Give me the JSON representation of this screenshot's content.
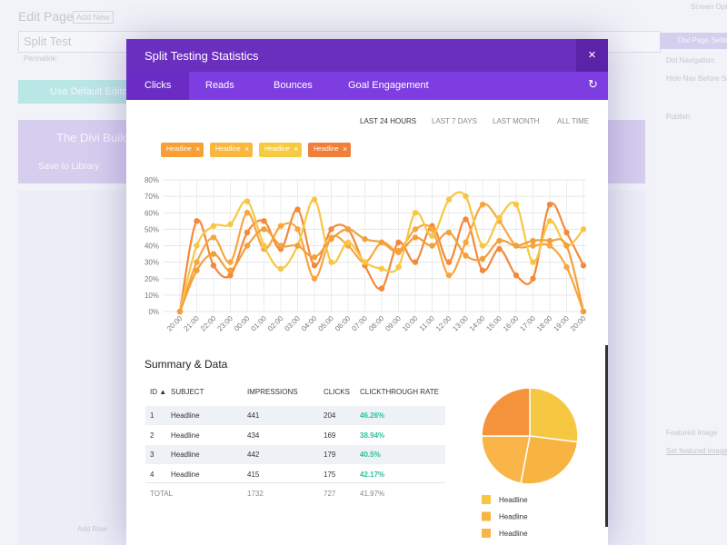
{
  "background": {
    "page_title": "Edit Page",
    "add_new": "Add New",
    "post_title": "Split Test",
    "permalink": "Permalink:",
    "default_editor": "Use Default Editor",
    "builder": "The Divi Builder",
    "save_library": "Save to Library",
    "screen_options": "Screen Options",
    "settings_title": "Divi Page Settings",
    "dot_nav": "Dot Navigation:",
    "hide_nav": "Hide Nav Before Scroll:",
    "publish": "Publish",
    "featured_image": "Featured Image",
    "set_featured": "Set featured image",
    "add_row": "Add Row"
  },
  "modal": {
    "title": "Split Testing Statistics",
    "close": "×",
    "tabs": [
      "Clicks",
      "Reads",
      "Bounces",
      "Goal Engagement"
    ],
    "refresh": "↻",
    "filters": [
      "LAST 24 HOURS",
      "LAST 7 DAYS",
      "LAST MONTH",
      "ALL TIME"
    ],
    "chips": [
      {
        "label": "Headline",
        "color": "#f7a035"
      },
      {
        "label": "Headline",
        "color": "#f9b740"
      },
      {
        "label": "Headline",
        "color": "#f6cb3f"
      },
      {
        "label": "Headline",
        "color": "#ef7f3a"
      }
    ],
    "chip_remove": "×"
  },
  "chart_data": [
    {
      "type": "line",
      "categories": [
        "20:00",
        "21:00",
        "22:00",
        "23:00",
        "00:00",
        "01:00",
        "02:00",
        "03:00",
        "04:00",
        "05:00",
        "06:00",
        "07:00",
        "08:00",
        "09:00",
        "10:00",
        "11:00",
        "12:00",
        "13:00",
        "14:00",
        "15:00",
        "16:00",
        "17:00",
        "18:00",
        "19:00",
        "20:00"
      ],
      "ylim": [
        0,
        80
      ],
      "yticks": [
        {
          "value": 0,
          "label": "0%"
        },
        {
          "value": 10,
          "label": "10%"
        },
        {
          "value": 20,
          "label": "20%"
        },
        {
          "value": 30,
          "label": "30%"
        },
        {
          "value": 40,
          "label": "40%"
        },
        {
          "value": 50,
          "label": "50%"
        },
        {
          "value": 60,
          "label": "60%"
        },
        {
          "value": 70,
          "label": "70%"
        },
        {
          "value": 80,
          "label": "80%"
        }
      ],
      "grid": true,
      "series": [
        {
          "color": "#f5893a",
          "values": [
            0,
            55,
            28,
            22,
            48,
            55,
            38,
            62,
            28,
            50,
            50,
            28,
            14,
            42,
            30,
            52,
            30,
            56,
            25,
            38,
            22,
            20,
            65,
            48,
            28
          ]
        },
        {
          "color": "#f9a53f",
          "values": [
            0,
            30,
            45,
            30,
            60,
            38,
            52,
            50,
            20,
            45,
            40,
            30,
            42,
            37,
            50,
            50,
            22,
            42,
            65,
            55,
            40,
            40,
            40,
            27,
            0
          ]
        },
        {
          "color": "#f7c744",
          "values": [
            0,
            40,
            52,
            53,
            67,
            40,
            26,
            40,
            68,
            30,
            42,
            30,
            26,
            27,
            60,
            46,
            68,
            70,
            40,
            57,
            65,
            30,
            55,
            40,
            50
          ]
        },
        {
          "color": "#f2a03a",
          "values": [
            0,
            25,
            35,
            25,
            40,
            50,
            40,
            40,
            33,
            44,
            50,
            44,
            42,
            36,
            45,
            40,
            48,
            34,
            32,
            43,
            40,
            43,
            43,
            40,
            0
          ]
        }
      ]
    },
    {
      "type": "pie",
      "categories": [
        "Headline",
        "Headline",
        "Headline",
        "Headline"
      ],
      "values": [
        27,
        26,
        22,
        25
      ],
      "colors": [
        "#f6c842",
        "#f8b440",
        "#f9b547",
        "#f4933c"
      ]
    }
  ],
  "summary": {
    "title": "Summary & Data",
    "headers": [
      "ID ▲",
      "SUBJECT",
      "IMPRESSIONS",
      "CLICKS",
      "CLICKTHROUGH RATE"
    ],
    "rows": [
      [
        "1",
        "Headline",
        "441",
        "204",
        "46.26%"
      ],
      [
        "2",
        "Headline",
        "434",
        "169",
        "38.94%"
      ],
      [
        "3",
        "Headline",
        "442",
        "179",
        "40.5%"
      ],
      [
        "4",
        "Headline",
        "415",
        "175",
        "42.17%"
      ]
    ],
    "total": {
      "label": "TOTAL",
      "impressions": "1732",
      "clicks": "727",
      "rate": "41.97%"
    }
  }
}
